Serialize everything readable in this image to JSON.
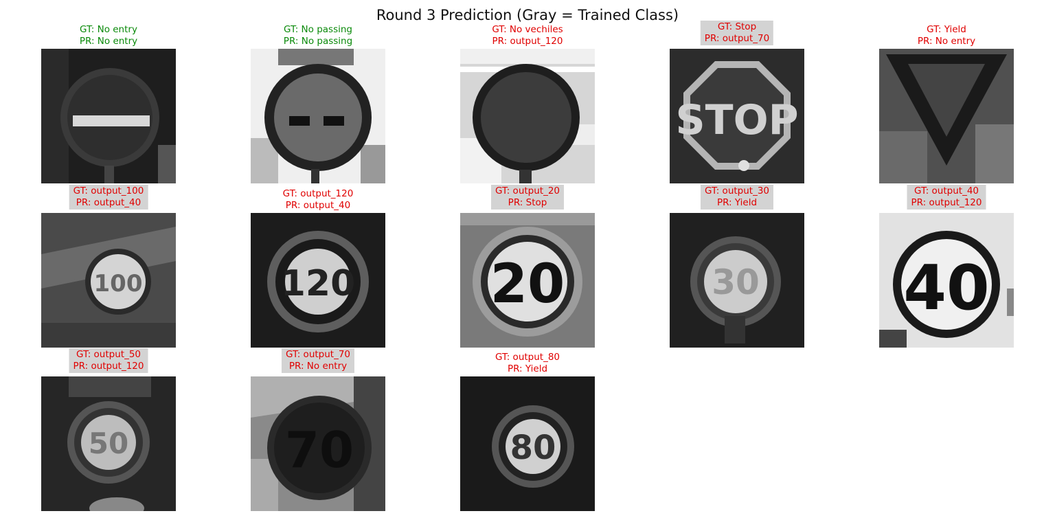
{
  "title": "Round 3 Prediction (Gray = Trained Class)",
  "colors": {
    "correct": "#0a8a0a",
    "wrong": "#e00000",
    "trained_bg": "#d3d3d3"
  },
  "panels": [
    {
      "gt": "GT: No entry",
      "pr": "PR: No entry",
      "correct": true,
      "trained": false,
      "image": "no-entry-sign"
    },
    {
      "gt": "GT: No passing",
      "pr": "PR: No passing",
      "correct": true,
      "trained": false,
      "image": "no-passing-sign"
    },
    {
      "gt": "GT: No vechiles",
      "pr": "PR: output_120",
      "correct": false,
      "trained": false,
      "image": "no-vehicles-sign"
    },
    {
      "gt": "GT: Stop",
      "pr": "PR: output_70",
      "correct": false,
      "trained": true,
      "image": "stop-sign",
      "sign_text": "STOP"
    },
    {
      "gt": "GT: Yield",
      "pr": "PR: No entry",
      "correct": false,
      "trained": false,
      "image": "yield-sign"
    },
    {
      "gt": "GT: output_100",
      "pr": "PR: output_40",
      "correct": false,
      "trained": true,
      "image": "speed-100-sign",
      "sign_text": "100"
    },
    {
      "gt": "GT: output_120",
      "pr": "PR: output_40",
      "correct": false,
      "trained": false,
      "image": "speed-120-sign",
      "sign_text": "120"
    },
    {
      "gt": "GT: output_20",
      "pr": "PR: Stop",
      "correct": false,
      "trained": true,
      "image": "speed-20-sign",
      "sign_text": "20"
    },
    {
      "gt": "GT: output_30",
      "pr": "PR: Yield",
      "correct": false,
      "trained": true,
      "image": "speed-30-sign",
      "sign_text": "30"
    },
    {
      "gt": "GT: output_40",
      "pr": "PR: output_120",
      "correct": false,
      "trained": true,
      "image": "speed-40-sign",
      "sign_text": "40"
    },
    {
      "gt": "GT: output_50",
      "pr": "PR: output_120",
      "correct": false,
      "trained": true,
      "image": "speed-50-sign",
      "sign_text": "50"
    },
    {
      "gt": "GT: output_70",
      "pr": "PR: No entry",
      "correct": false,
      "trained": true,
      "image": "speed-70-sign",
      "sign_text": "70"
    },
    {
      "gt": "GT: output_80",
      "pr": "PR: Yield",
      "correct": false,
      "trained": false,
      "image": "speed-80-sign",
      "sign_text": "80"
    }
  ]
}
